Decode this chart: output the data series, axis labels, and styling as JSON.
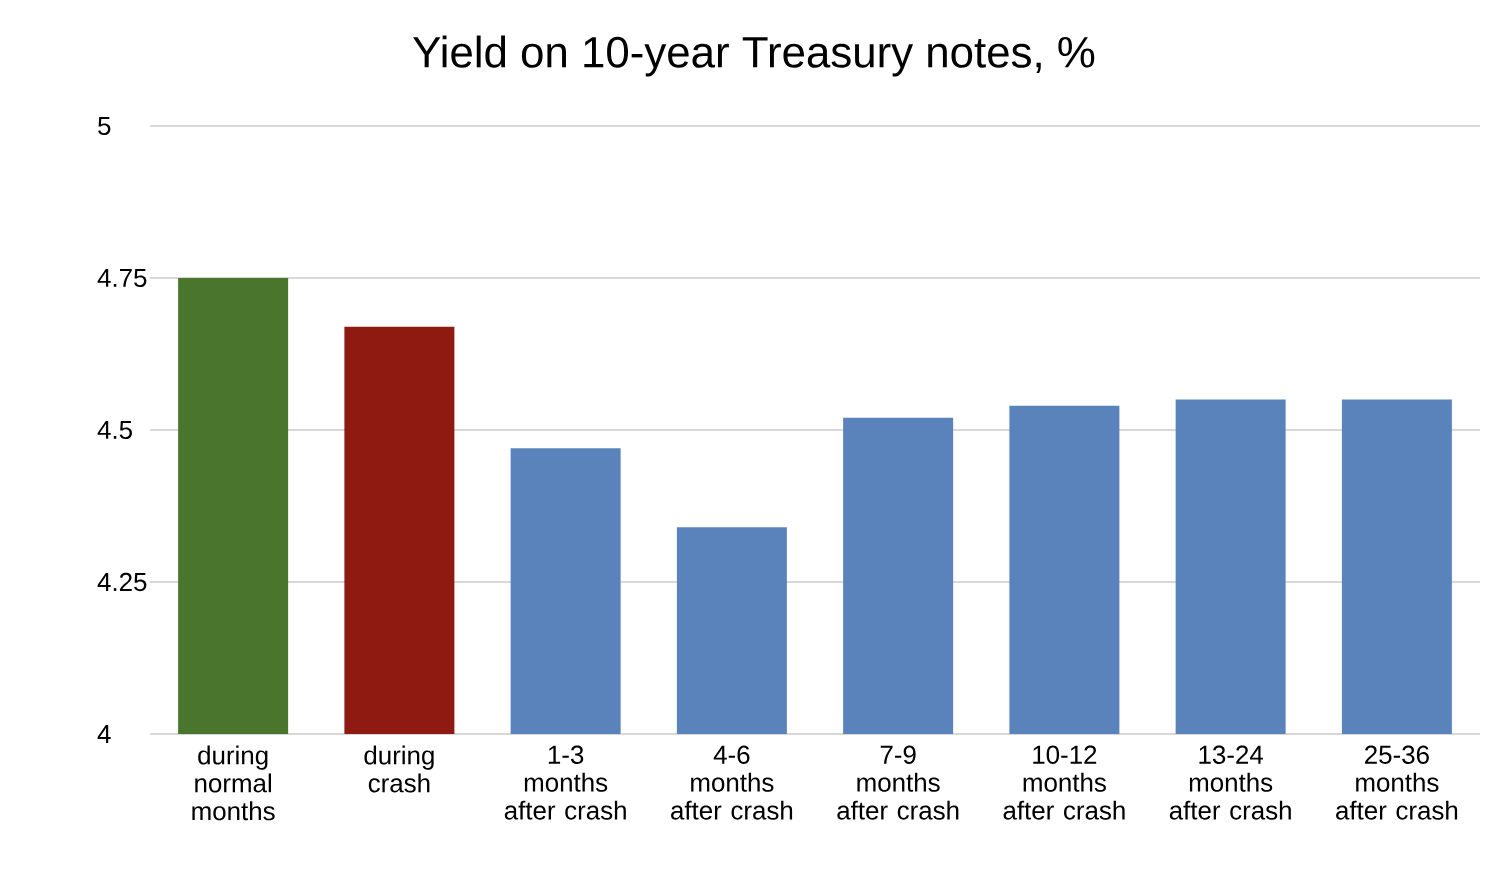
{
  "chart_data": {
    "type": "bar",
    "title": "Yield on 10-year Treasury notes, %",
    "categories": [
      "during normal months",
      "during crash",
      "1-3 months after crash",
      "4-6 months after crash",
      "7-9 months after crash",
      "10-12 months after crash",
      "13-24 months after crash",
      "25-36 months after crash"
    ],
    "values": [
      4.75,
      4.67,
      4.47,
      4.34,
      4.52,
      4.54,
      4.55,
      4.55
    ],
    "colors": [
      "#4a752c",
      "#8e1a12",
      "#5b83bb",
      "#5b83bb",
      "#5b83bb",
      "#5b83bb",
      "#5b83bb",
      "#5b83bb"
    ],
    "ylim": [
      4,
      5
    ],
    "yticks": [
      4,
      4.25,
      4.5,
      4.75,
      5
    ],
    "grid": "y"
  }
}
